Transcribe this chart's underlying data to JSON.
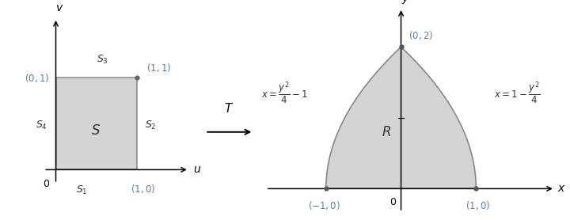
{
  "bg_color": "#ffffff",
  "fill_color": "#d4d4d4",
  "border_color": "#888888",
  "arrow_color": "#aaaaaa",
  "axis_color": "#000000",
  "label_color": "#5b7fa6",
  "text_color": "#404040",
  "dark_text": "#333333"
}
